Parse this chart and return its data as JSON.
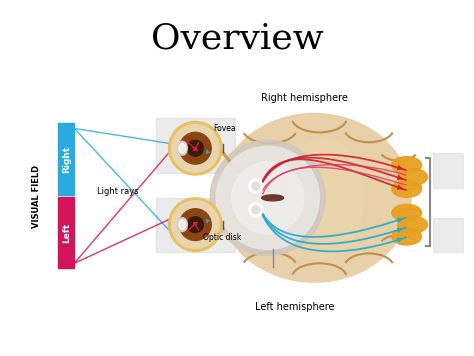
{
  "title": "Overview",
  "title_fontsize": 26,
  "title_font": "serif",
  "bg_color": "#ffffff",
  "label_right_hemisphere": "Right hemisphere",
  "label_left_hemisphere": "Left hemisphere",
  "label_fovea": "Fovea",
  "label_optic_disk": "Optic disk",
  "label_light_rays": "Light rays",
  "label_visual_field": "VISUAL FIELD",
  "label_right": "Right",
  "label_left": "Left",
  "bar_right_color": "#29abe2",
  "bar_left_color": "#d4145a",
  "brain_light": "#e8d0a8",
  "brain_mid": "#d4b880",
  "brain_dark": "#c8a060",
  "brain_groove": "#c09050",
  "visual_cortex_color": "#e8a020",
  "nerve_red": "#cc2233",
  "nerve_cyan": "#22aacc",
  "nerve_pink": "#dd3366",
  "nerve_teal": "#008888",
  "eye_outer": "#e8c060",
  "eye_sclera": "#e8d5b0",
  "eye_iris": "#8b4513",
  "eye_pupil": "#3a1a0a",
  "optic_nerve_color": "#c8a060",
  "chiasm_color": "#d8d0c8",
  "gray_box": "#c8c8c8"
}
